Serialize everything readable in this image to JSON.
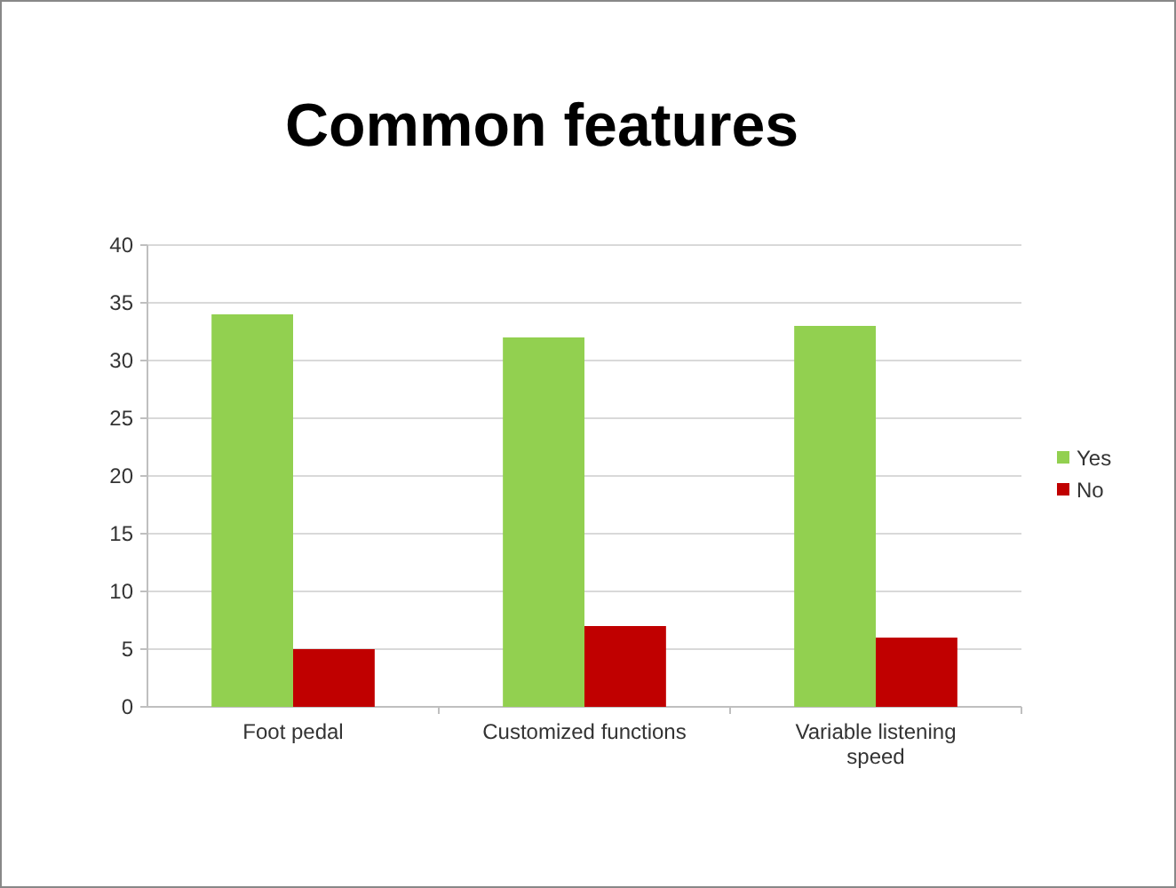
{
  "chart_data": {
    "type": "bar",
    "title": "Common features",
    "categories": [
      "Foot pedal",
      "Customized functions",
      "Variable listening speed"
    ],
    "series": [
      {
        "name": "Yes",
        "color": "#92d050",
        "values": [
          34,
          32,
          33
        ]
      },
      {
        "name": "No",
        "color": "#c00000",
        "values": [
          5,
          7,
          6
        ]
      }
    ],
    "ylim": [
      0,
      40
    ],
    "yticks": [
      0,
      5,
      10,
      15,
      20,
      25,
      30,
      35,
      40
    ],
    "grid": "y",
    "legend": "right"
  }
}
